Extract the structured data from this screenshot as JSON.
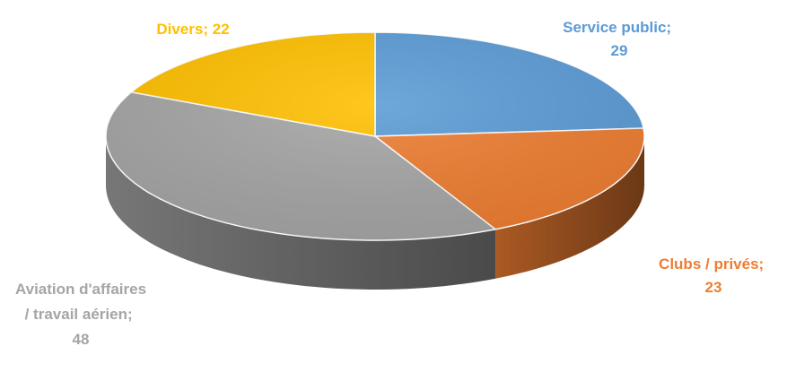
{
  "chart_data": {
    "type": "pie",
    "categories": [
      "Service public",
      "Clubs / privés",
      "Aviation d'affaires / travail aérien",
      "Divers"
    ],
    "values": [
      29,
      23,
      48,
      22
    ],
    "colors": [
      "#5b9bd5",
      "#ed7d31",
      "#a5a5a5",
      "#ffc000"
    ],
    "label_separator": ";"
  }
}
